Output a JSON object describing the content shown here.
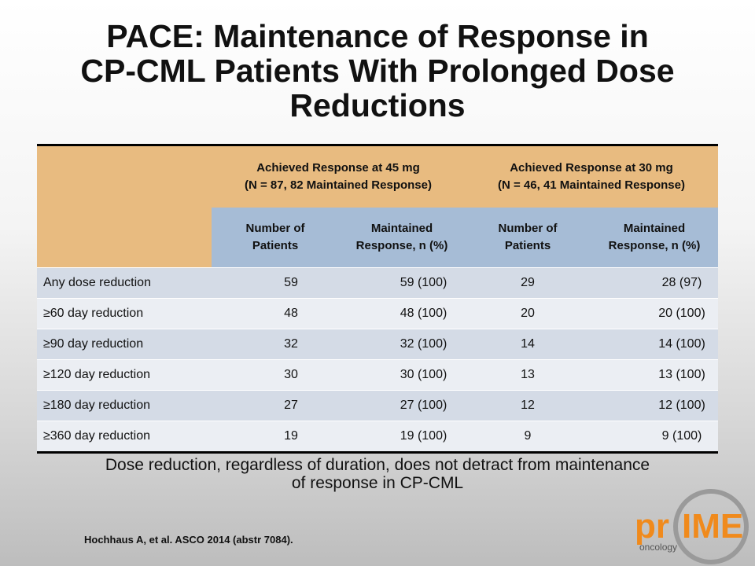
{
  "slide": {
    "title_lines": [
      "PACE: Maintenance of Response in",
      "CP-CML Patients With Prolonged Dose",
      "Reductions"
    ],
    "table": {
      "group_headers": [
        {
          "line1": "Achieved Response at 45 mg",
          "line2": "(N = 87, 82 Maintained Response)"
        },
        {
          "line1": "Achieved Response at 30 mg",
          "line2": "(N = 46, 41 Maintained Response)"
        }
      ],
      "sub_headers": [
        {
          "line1": "Number of",
          "line2": "Patients"
        },
        {
          "line1": "Maintained",
          "line2": "Response, n (%)"
        },
        {
          "line1": "Number of",
          "line2": "Patients"
        },
        {
          "line1": "Maintained",
          "line2": "Response, n (%)"
        }
      ],
      "rows": [
        {
          "label": "Any dose reduction",
          "cells": [
            "59",
            "59 (100)",
            "29",
            "28 (97)"
          ]
        },
        {
          "label": "≥60 day reduction",
          "cells": [
            "48",
            "48 (100)",
            "20",
            "20 (100)"
          ]
        },
        {
          "label": "≥90 day reduction",
          "cells": [
            "32",
            "32 (100)",
            "14",
            "14 (100)"
          ]
        },
        {
          "label": "≥120 day reduction",
          "cells": [
            "30",
            "30 (100)",
            "13",
            "13 (100)"
          ]
        },
        {
          "label": "≥180 day reduction",
          "cells": [
            "27",
            "27 (100)",
            "12",
            "12 (100)"
          ]
        },
        {
          "label": "≥360 day reduction",
          "cells": [
            "19",
            "19 (100)",
            "9",
            "9 (100)"
          ]
        }
      ]
    },
    "footnote_lines": [
      "Dose reduction, regardless of duration, does not detract from maintenance",
      "of response in CP-CML"
    ],
    "citation": "Hochhaus A, et al. ASCO 2014 (abstr 7084).",
    "logo": {
      "pr": "pr",
      "ime": "IME",
      "sub": "oncology"
    }
  }
}
